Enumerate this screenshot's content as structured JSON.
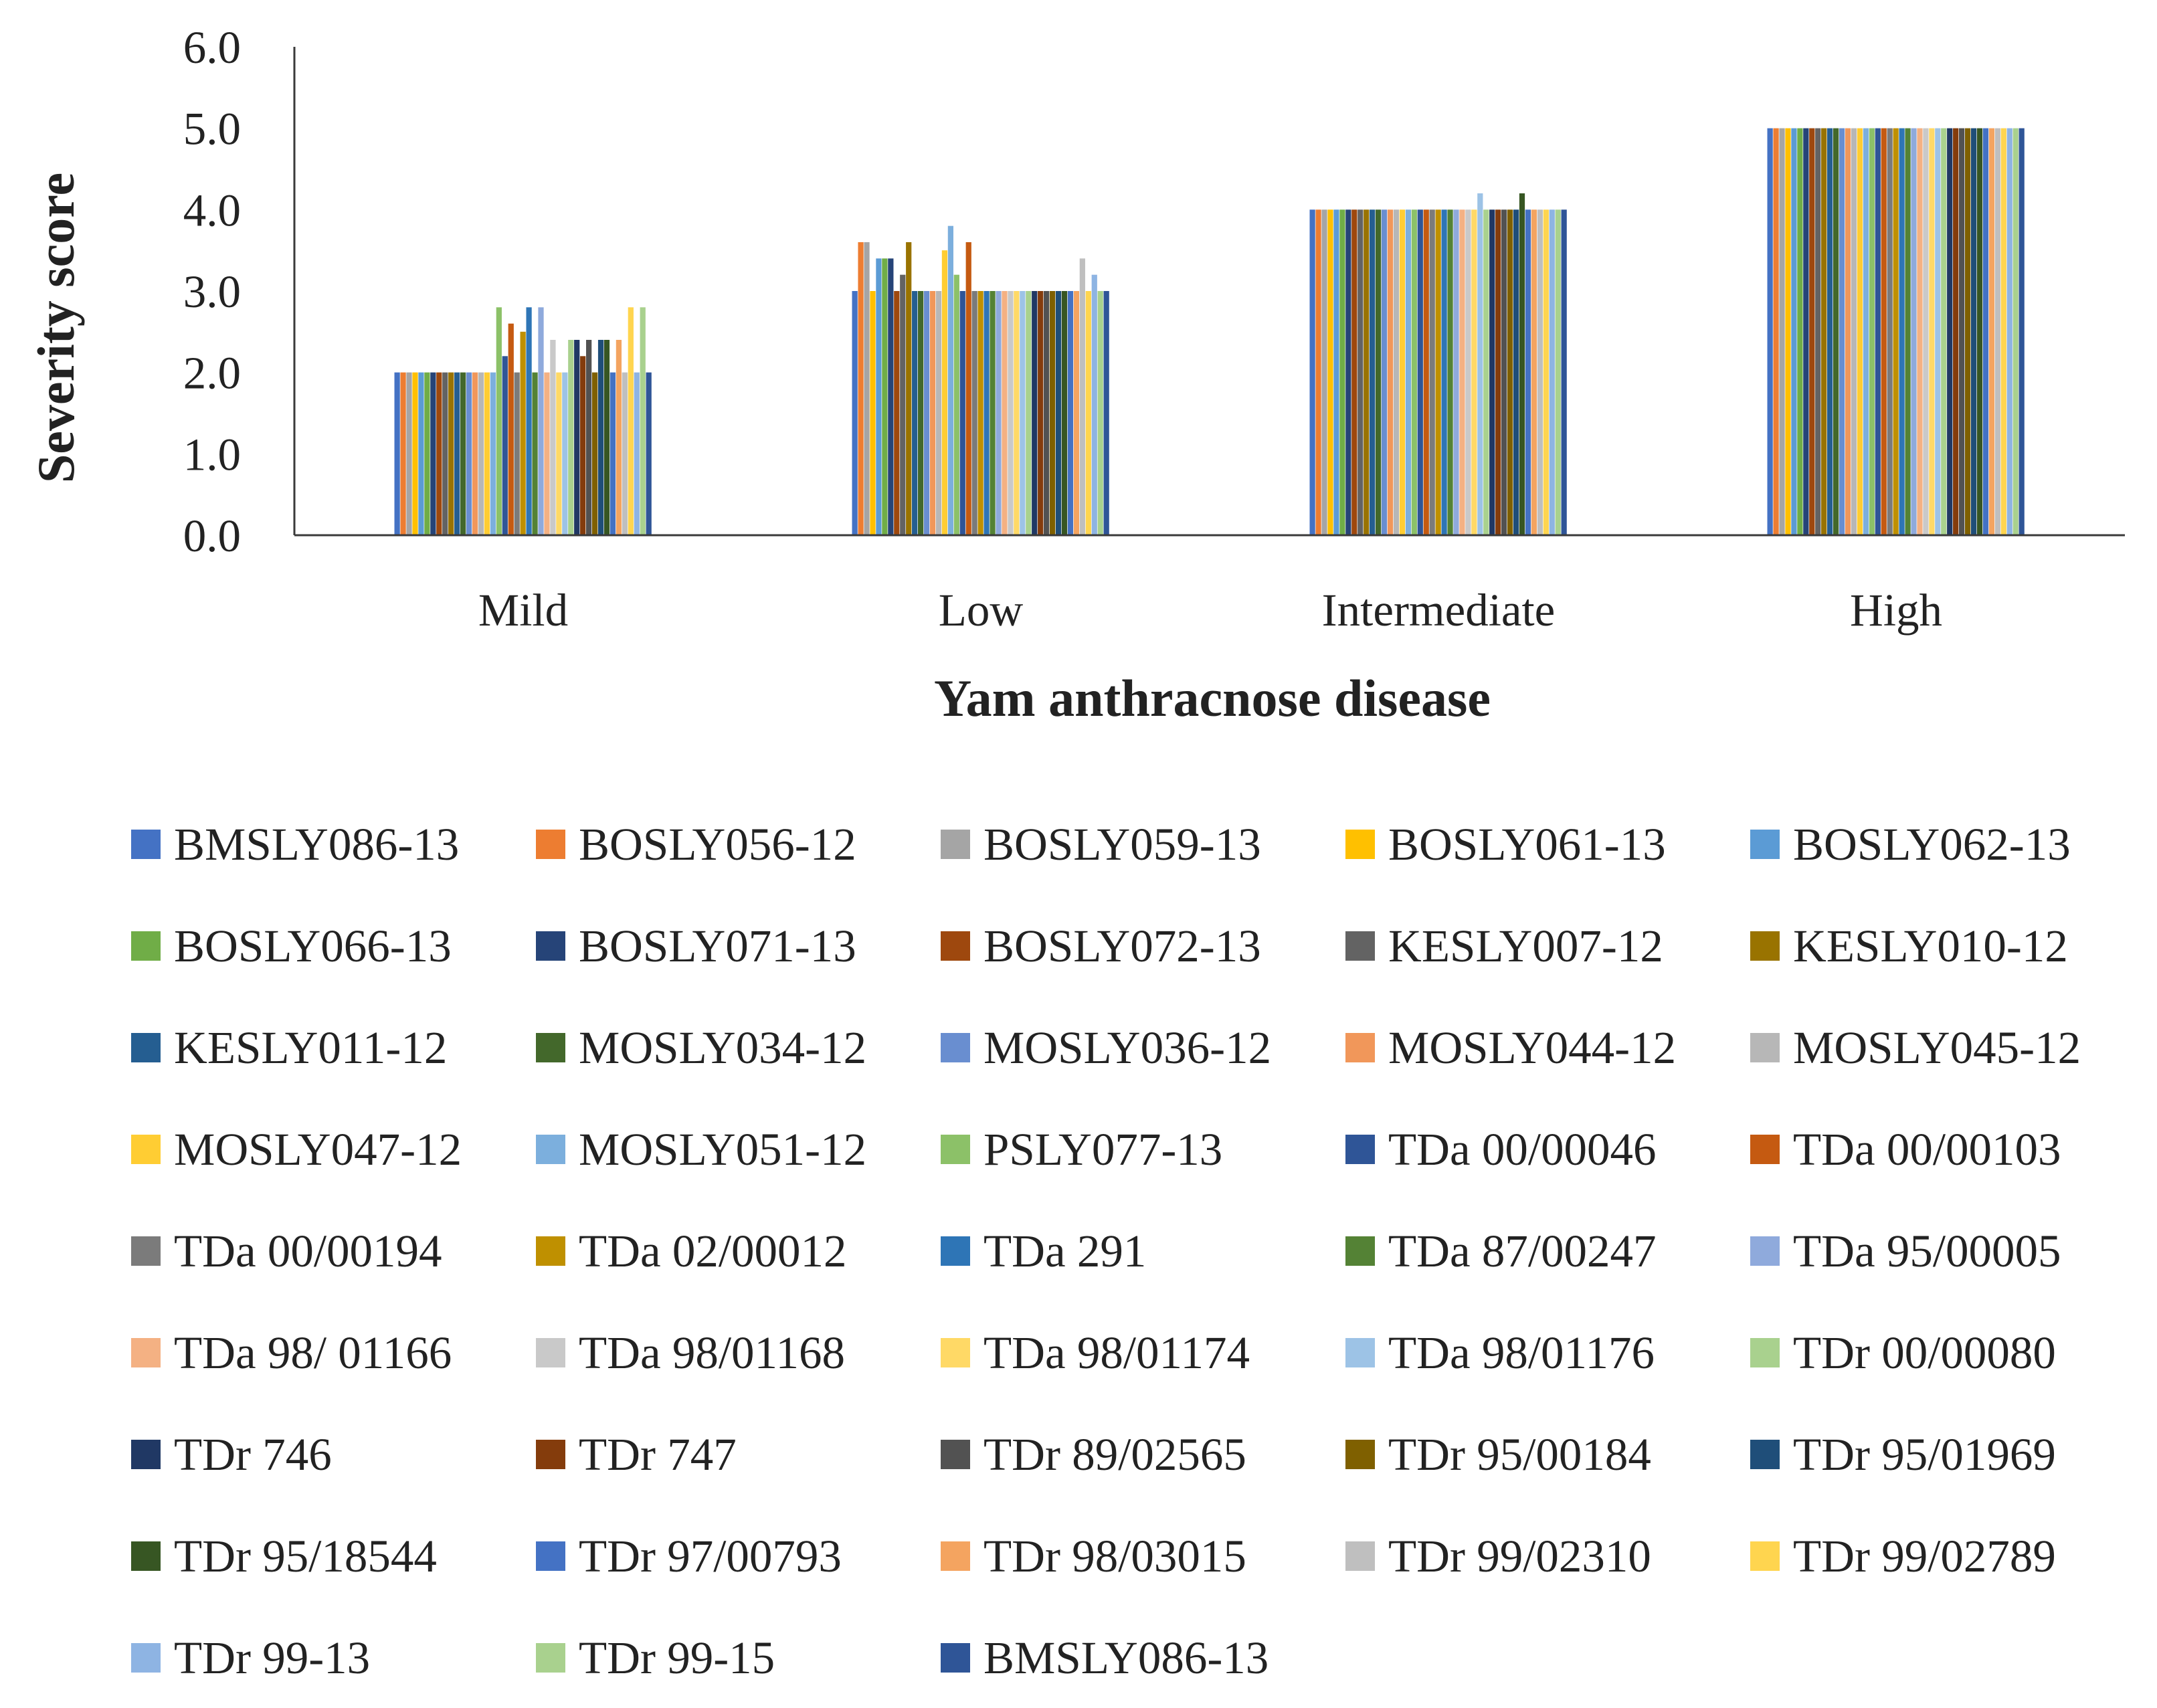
{
  "chart_data": {
    "type": "bar",
    "title": "",
    "xlabel": "Yam anthracnose disease",
    "ylabel": "Severity score",
    "ylim": [
      0,
      6
    ],
    "yticks": [
      "0.0",
      "1.0",
      "2.0",
      "3.0",
      "4.0",
      "5.0",
      "6.0"
    ],
    "grid": false,
    "legend_position": "bottom",
    "categories": [
      "Mild",
      "Low",
      "Intermediate",
      "High"
    ],
    "series": [
      {
        "name": "BMSLY086-13",
        "color": "#4472C4",
        "values": [
          2.0,
          3.0,
          4.0,
          5.0
        ]
      },
      {
        "name": "BOSLY056-12",
        "color": "#ED7D31",
        "values": [
          2.0,
          3.6,
          4.0,
          5.0
        ]
      },
      {
        "name": "BOSLY059-13",
        "color": "#A5A5A5",
        "values": [
          2.0,
          3.6,
          4.0,
          5.0
        ]
      },
      {
        "name": "BOSLY061-13",
        "color": "#FFC000",
        "values": [
          2.0,
          3.0,
          4.0,
          5.0
        ]
      },
      {
        "name": "BOSLY062-13",
        "color": "#5B9BD5",
        "values": [
          2.0,
          3.4,
          4.0,
          5.0
        ]
      },
      {
        "name": "BOSLY066-13",
        "color": "#70AD47",
        "values": [
          2.0,
          3.4,
          4.0,
          5.0
        ]
      },
      {
        "name": "BOSLY071-13",
        "color": "#264478",
        "values": [
          2.0,
          3.4,
          4.0,
          5.0
        ]
      },
      {
        "name": "BOSLY072-13",
        "color": "#9E480E",
        "values": [
          2.0,
          3.0,
          4.0,
          5.0
        ]
      },
      {
        "name": "KESLY007-12",
        "color": "#636363",
        "values": [
          2.0,
          3.2,
          4.0,
          5.0
        ]
      },
      {
        "name": "KESLY010-12",
        "color": "#997300",
        "values": [
          2.0,
          3.6,
          4.0,
          5.0
        ]
      },
      {
        "name": "KESLY011-12",
        "color": "#255E91",
        "values": [
          2.0,
          3.0,
          4.0,
          5.0
        ]
      },
      {
        "name": "MOSLY034-12",
        "color": "#43682B",
        "values": [
          2.0,
          3.0,
          4.0,
          5.0
        ]
      },
      {
        "name": "MOSLY036-12",
        "color": "#698ED0",
        "values": [
          2.0,
          3.0,
          4.0,
          5.0
        ]
      },
      {
        "name": "MOSLY044-12",
        "color": "#F1975A",
        "values": [
          2.0,
          3.0,
          4.0,
          5.0
        ]
      },
      {
        "name": "MOSLY045-12",
        "color": "#B7B7B7",
        "values": [
          2.0,
          3.0,
          4.0,
          5.0
        ]
      },
      {
        "name": "MOSLY047-12",
        "color": "#FFCD33",
        "values": [
          2.0,
          3.5,
          4.0,
          5.0
        ]
      },
      {
        "name": "MOSLY051-12",
        "color": "#7CAFDD",
        "values": [
          2.0,
          3.8,
          4.0,
          5.0
        ]
      },
      {
        "name": "PSLY077-13",
        "color": "#8CC168",
        "values": [
          2.8,
          3.2,
          4.0,
          5.0
        ]
      },
      {
        "name": "TDa 00/00046",
        "color": "#2F5597",
        "values": [
          2.2,
          3.0,
          4.0,
          5.0
        ]
      },
      {
        "name": "TDa 00/00103",
        "color": "#C55A11",
        "values": [
          2.6,
          3.6,
          4.0,
          5.0
        ]
      },
      {
        "name": "TDa 00/00194",
        "color": "#7B7B7B",
        "values": [
          2.0,
          3.0,
          4.0,
          5.0
        ]
      },
      {
        "name": "TDa 02/00012",
        "color": "#BF9000",
        "values": [
          2.5,
          3.0,
          4.0,
          5.0
        ]
      },
      {
        "name": "TDa 291",
        "color": "#2E75B6",
        "values": [
          2.8,
          3.0,
          4.0,
          5.0
        ]
      },
      {
        "name": "TDa 87/00247",
        "color": "#548235",
        "values": [
          2.0,
          3.0,
          4.0,
          5.0
        ]
      },
      {
        "name": "TDa 95/00005",
        "color": "#8FAADC",
        "values": [
          2.8,
          3.0,
          4.0,
          5.0
        ]
      },
      {
        "name": "TDa 98/ 01166",
        "color": "#F4B183",
        "values": [
          2.0,
          3.0,
          4.0,
          5.0
        ]
      },
      {
        "name": "TDa 98/01168",
        "color": "#C9C9C9",
        "values": [
          2.4,
          3.0,
          4.0,
          5.0
        ]
      },
      {
        "name": "TDa 98/01174",
        "color": "#FFD966",
        "values": [
          2.0,
          3.0,
          4.0,
          5.0
        ]
      },
      {
        "name": "TDa 98/01176",
        "color": "#9DC3E6",
        "values": [
          2.0,
          3.0,
          4.2,
          5.0
        ]
      },
      {
        "name": "TDr 00/00080",
        "color": "#A9D18E",
        "values": [
          2.4,
          3.0,
          4.0,
          5.0
        ]
      },
      {
        "name": "TDr 746",
        "color": "#203864",
        "values": [
          2.4,
          3.0,
          4.0,
          5.0
        ]
      },
      {
        "name": "TDr 747",
        "color": "#843C0C",
        "values": [
          2.2,
          3.0,
          4.0,
          5.0
        ]
      },
      {
        "name": "TDr 89/02565",
        "color": "#525252",
        "values": [
          2.4,
          3.0,
          4.0,
          5.0
        ]
      },
      {
        "name": "TDr 95/00184",
        "color": "#7F6000",
        "values": [
          2.0,
          3.0,
          4.0,
          5.0
        ]
      },
      {
        "name": "TDr 95/01969",
        "color": "#1F4E79",
        "values": [
          2.4,
          3.0,
          4.0,
          5.0
        ]
      },
      {
        "name": "TDr 95/18544",
        "color": "#375623",
        "values": [
          2.4,
          3.0,
          4.2,
          5.0
        ]
      },
      {
        "name": "TDr 97/00793",
        "color": "#4472C4",
        "values": [
          2.0,
          3.0,
          4.0,
          5.0
        ]
      },
      {
        "name": "TDr 98/03015",
        "color": "#F4A460",
        "values": [
          2.4,
          3.0,
          4.0,
          5.0
        ]
      },
      {
        "name": "TDr 99/02310",
        "color": "#BFBFBF",
        "values": [
          2.0,
          3.4,
          4.0,
          5.0
        ]
      },
      {
        "name": "TDr 99/02789",
        "color": "#FFD54F",
        "values": [
          2.8,
          3.0,
          4.0,
          5.0
        ]
      },
      {
        "name": "TDr 99-13",
        "color": "#8EB4E3",
        "values": [
          2.0,
          3.2,
          4.0,
          5.0
        ]
      },
      {
        "name": "TDr 99-15",
        "color": "#A9D18E",
        "values": [
          2.8,
          3.0,
          4.0,
          5.0
        ]
      },
      {
        "name": "BMSLY086-13",
        "color": "#2F5597",
        "values": [
          2.0,
          3.0,
          4.0,
          5.0
        ]
      }
    ]
  }
}
